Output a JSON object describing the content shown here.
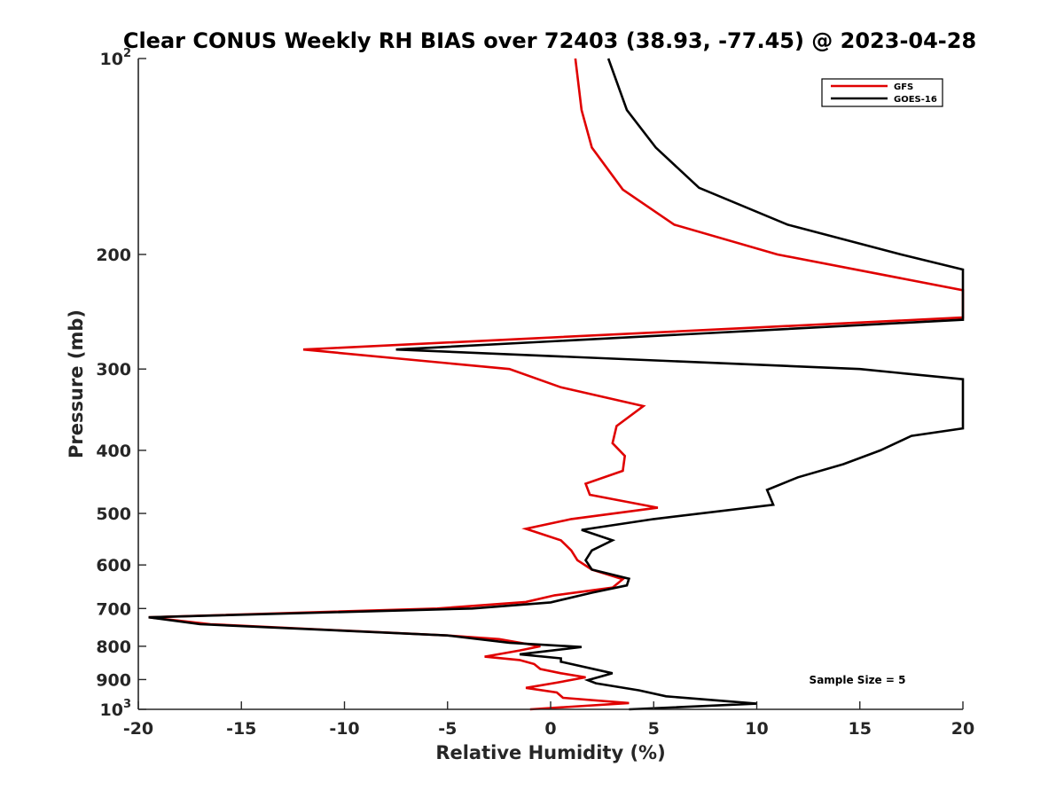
{
  "chart_data": {
    "type": "line",
    "title": "Clear CONUS Weekly RH BIAS over 72403 (38.93, -77.45) @ 2023-04-28",
    "xlabel": "Relative Humidity (%)",
    "ylabel": "Pressure (mb)",
    "xlim": [
      -20,
      20
    ],
    "ylim": [
      100,
      1000
    ],
    "y_scale": "log",
    "y_reversed": true,
    "xticks": [
      "-20",
      "-15",
      "-10",
      "-5",
      "0",
      "5",
      "10",
      "15",
      "20"
    ],
    "xtick_values": [
      -20,
      -15,
      -10,
      -5,
      0,
      5,
      10,
      15,
      20
    ],
    "yticks": [
      {
        "value": 100,
        "base": "10",
        "exp": "2"
      },
      {
        "value": 200,
        "base": "200",
        "exp": ""
      },
      {
        "value": 300,
        "base": "300",
        "exp": ""
      },
      {
        "value": 400,
        "base": "400",
        "exp": ""
      },
      {
        "value": 500,
        "base": "500",
        "exp": ""
      },
      {
        "value": 600,
        "base": "600",
        "exp": ""
      },
      {
        "value": 700,
        "base": "700",
        "exp": ""
      },
      {
        "value": 800,
        "base": "800",
        "exp": ""
      },
      {
        "value": 900,
        "base": "900",
        "exp": ""
      },
      {
        "value": 1000,
        "base": "10",
        "exp": "3"
      }
    ],
    "grid": false,
    "legend_position": "top-right",
    "annotation": "Sample Size = 5",
    "series": [
      {
        "name": "GFS",
        "color": "#e00000",
        "points": [
          [
            1.2,
            100
          ],
          [
            1.5,
            120
          ],
          [
            2.0,
            137
          ],
          [
            3.5,
            159
          ],
          [
            6.0,
            180
          ],
          [
            11.0,
            200
          ],
          [
            20.0,
            227
          ],
          [
            20.0,
            250
          ],
          [
            -12.0,
            280
          ],
          [
            -2.0,
            300
          ],
          [
            0.5,
            320
          ],
          [
            4.5,
            342
          ],
          [
            3.2,
            367
          ],
          [
            3.0,
            390
          ],
          [
            3.6,
            408
          ],
          [
            3.5,
            430
          ],
          [
            1.7,
            450
          ],
          [
            1.9,
            468
          ],
          [
            5.2,
            490
          ],
          [
            1.0,
            510
          ],
          [
            -1.2,
            528
          ],
          [
            0.5,
            550
          ],
          [
            1.0,
            570
          ],
          [
            1.3,
            590
          ],
          [
            2.0,
            610
          ],
          [
            3.5,
            631
          ],
          [
            3.0,
            650
          ],
          [
            0.2,
            668
          ],
          [
            -1.2,
            684
          ],
          [
            -5.5,
            700
          ],
          [
            -19.5,
            722
          ],
          [
            -16.5,
            740
          ],
          [
            -5.0,
            770
          ],
          [
            -2.5,
            780
          ],
          [
            -0.5,
            800
          ],
          [
            -1.5,
            812
          ],
          [
            -3.2,
            830
          ],
          [
            -1.5,
            840
          ],
          [
            -0.8,
            852
          ],
          [
            -0.5,
            867
          ],
          [
            0.5,
            880
          ],
          [
            1.7,
            893
          ],
          [
            0.3,
            910
          ],
          [
            -1.2,
            927
          ],
          [
            0.3,
            942
          ],
          [
            0.6,
            960
          ],
          [
            3.8,
            978
          ],
          [
            -1.0,
            1000
          ]
        ]
      },
      {
        "name": "GOES-16",
        "color": "#000000",
        "points": [
          [
            2.8,
            100
          ],
          [
            3.7,
            120
          ],
          [
            5.1,
            137
          ],
          [
            7.2,
            158
          ],
          [
            11.5,
            180
          ],
          [
            17.0,
            200
          ],
          [
            20.0,
            211
          ],
          [
            20.0,
            252
          ],
          [
            -7.5,
            280
          ],
          [
            15.0,
            300
          ],
          [
            20.0,
            311
          ],
          [
            20.0,
            370
          ],
          [
            17.5,
            380
          ],
          [
            16.0,
            400
          ],
          [
            14.2,
            420
          ],
          [
            12.0,
            440
          ],
          [
            10.5,
            460
          ],
          [
            10.8,
            485
          ],
          [
            5.0,
            510
          ],
          [
            1.5,
            530
          ],
          [
            3.0,
            550
          ],
          [
            2.0,
            570
          ],
          [
            1.7,
            590
          ],
          [
            2.0,
            610
          ],
          [
            3.8,
            630
          ],
          [
            3.7,
            645
          ],
          [
            2.0,
            662
          ],
          [
            0.0,
            685
          ],
          [
            -3.8,
            700
          ],
          [
            -19.5,
            722
          ],
          [
            -17.0,
            740
          ],
          [
            -5.0,
            770
          ],
          [
            -2.0,
            790
          ],
          [
            1.5,
            802
          ],
          [
            -1.5,
            823
          ],
          [
            0.5,
            835
          ],
          [
            0.5,
            845
          ],
          [
            3.0,
            880
          ],
          [
            1.8,
            902
          ],
          [
            2.2,
            912
          ],
          [
            4.3,
            935
          ],
          [
            5.6,
            955
          ],
          [
            10.0,
            980
          ],
          [
            3.8,
            1000
          ]
        ]
      }
    ]
  }
}
